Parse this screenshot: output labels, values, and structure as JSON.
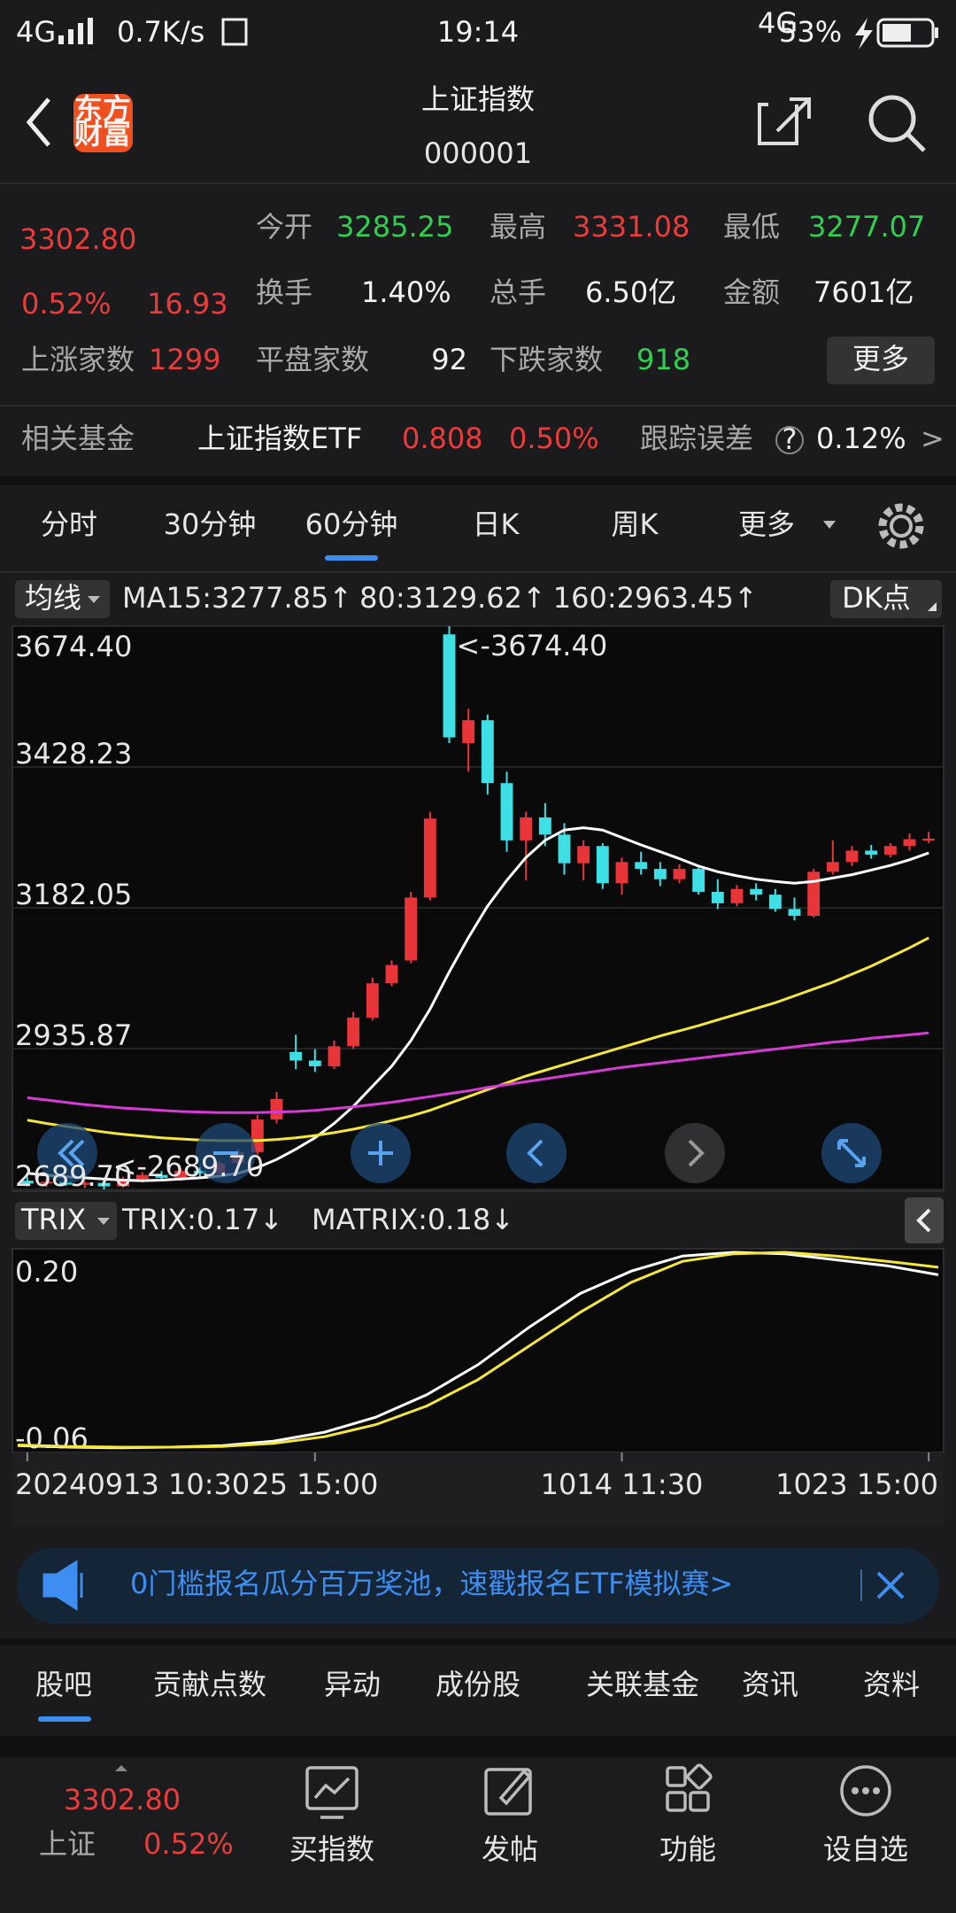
{
  "status_bar": {
    "network": "4G",
    "speed": "0.7K/s",
    "time": "19:14",
    "network_small": "4G",
    "battery": "53%"
  },
  "header": {
    "logo": [
      "东方",
      "财富"
    ],
    "title": "上证指数",
    "code": "000001"
  },
  "quote": {
    "price": "3302.80",
    "change_pct": "0.52%",
    "change": "16.93",
    "stats": [
      [
        {
          "label": "今开",
          "value": "3285.25"
        },
        {
          "label": "最高",
          "value": "3331.08"
        },
        {
          "label": "最低",
          "value": "3277.07"
        }
      ],
      [
        {
          "label": "换手",
          "value": "1.40%"
        },
        {
          "label": "总手",
          "value": "6.50亿"
        },
        {
          "label": "金额",
          "value": "7601亿"
        }
      ]
    ],
    "breadth": [
      {
        "label": "上涨家数",
        "value": "1299"
      },
      {
        "label": "平盘家数",
        "value": "92"
      },
      {
        "label": "下跌家数",
        "value": "918"
      }
    ],
    "more": "更多"
  },
  "fund": {
    "label": "相关基金",
    "name": "上证指数ETF",
    "price": "0.808",
    "pct": "0.50%",
    "tracking_label": "跟踪误差",
    "tracking_icon": "?",
    "tracking": "0.12%",
    "arrow": ">"
  },
  "period_tabs": [
    "分时",
    "30分钟",
    "60分钟",
    "日K",
    "周K",
    "更多"
  ],
  "chart_data": [
    {
      "type": "candlestick",
      "indicator_menu": "均线",
      "dk_button": "DK点",
      "up_color": "#e8353a",
      "down_color": "#3ee0e6",
      "grid": true,
      "ylim": [
        2689.7,
        3674.4
      ],
      "yticks": [
        {
          "value": 3674.4,
          "label": "3674.40"
        },
        {
          "value": 3428.23,
          "label": "3428.23"
        },
        {
          "value": 3182.05,
          "label": "3182.05"
        },
        {
          "value": 2935.87,
          "label": "2935.87"
        },
        {
          "value": 2689.7,
          "label": "2689.70"
        }
      ],
      "xticks": [
        {
          "value": 0,
          "label": "20240913 10:30"
        },
        {
          "value": 15,
          "label": "25 15:00"
        },
        {
          "value": 31,
          "label": "1014 11:30"
        },
        {
          "value": 47,
          "label": "1023 15:00"
        }
      ],
      "annotations": {
        "max": "<-3674.40",
        "min": "<-2689.70"
      },
      "candles": [
        [
          2705,
          2712,
          2695,
          2700
        ],
        [
          2700,
          2708,
          2694,
          2703
        ],
        [
          2703,
          2710,
          2696,
          2698
        ],
        [
          2698,
          2704,
          2692,
          2701
        ],
        [
          2701,
          2706,
          2689.7,
          2695
        ],
        [
          2695,
          2712,
          2693,
          2708
        ],
        [
          2708,
          2720,
          2702,
          2715
        ],
        [
          2715,
          2722,
          2706,
          2710
        ],
        [
          2710,
          2726,
          2705,
          2722
        ],
        [
          2722,
          2730,
          2712,
          2718
        ],
        [
          2718,
          2740,
          2715,
          2736
        ],
        [
          2736,
          2760,
          2730,
          2755
        ],
        [
          2755,
          2820,
          2750,
          2812
        ],
        [
          2812,
          2860,
          2805,
          2848
        ],
        [
          2930,
          2960,
          2900,
          2915
        ],
        [
          2915,
          2935,
          2895,
          2905
        ],
        [
          2905,
          2950,
          2900,
          2940
        ],
        [
          2940,
          3000,
          2935,
          2990
        ],
        [
          2990,
          3060,
          2985,
          3050
        ],
        [
          3050,
          3090,
          3045,
          3082
        ],
        [
          3090,
          3210,
          3085,
          3200
        ],
        [
          3200,
          3350,
          3195,
          3338
        ],
        [
          3660,
          3674.4,
          3470,
          3480
        ],
        [
          3470,
          3530,
          3420,
          3510
        ],
        [
          3510,
          3520,
          3380,
          3400
        ],
        [
          3400,
          3420,
          3280,
          3300
        ],
        [
          3300,
          3350,
          3230,
          3340
        ],
        [
          3340,
          3365,
          3290,
          3310
        ],
        [
          3310,
          3330,
          3240,
          3260
        ],
        [
          3260,
          3300,
          3230,
          3290
        ],
        [
          3290,
          3295,
          3215,
          3225
        ],
        [
          3225,
          3270,
          3205,
          3262
        ],
        [
          3262,
          3280,
          3240,
          3250
        ],
        [
          3250,
          3262,
          3220,
          3232
        ],
        [
          3232,
          3258,
          3225,
          3250
        ],
        [
          3250,
          3252,
          3205,
          3210
        ],
        [
          3210,
          3232,
          3180,
          3190
        ],
        [
          3190,
          3222,
          3185,
          3215
        ],
        [
          3215,
          3225,
          3195,
          3205
        ],
        [
          3205,
          3215,
          3175,
          3180
        ],
        [
          3180,
          3200,
          3160,
          3168
        ],
        [
          3168,
          3250,
          3165,
          3245
        ],
        [
          3245,
          3300,
          3240,
          3262
        ],
        [
          3262,
          3290,
          3255,
          3282
        ],
        [
          3282,
          3292,
          3268,
          3275
        ],
        [
          3275,
          3295,
          3270,
          3290
        ],
        [
          3290,
          3312,
          3282,
          3302
        ],
        [
          3302,
          3315,
          3295,
          3302.8
        ]
      ],
      "series": [
        {
          "name": "MA15:3277.85↑",
          "color": "#ffffff",
          "values": [
            2718,
            2715,
            2712,
            2710,
            2708,
            2706,
            2705,
            2706,
            2708,
            2710,
            2713,
            2718,
            2728,
            2742,
            2760,
            2780,
            2805,
            2835,
            2870,
            2905,
            2950,
            3005,
            3070,
            3130,
            3185,
            3230,
            3270,
            3300,
            3318,
            3322,
            3318,
            3305,
            3292,
            3280,
            3268,
            3255,
            3245,
            3238,
            3232,
            3228,
            3225,
            3228,
            3234,
            3240,
            3248,
            3256,
            3266,
            3277.85
          ]
        },
        {
          "name": "80:3129.62↑",
          "color": "#f5e63c",
          "values": [
            2811,
            2805,
            2800,
            2795,
            2790,
            2786,
            2783,
            2780,
            2778,
            2776,
            2775,
            2775,
            2775,
            2777,
            2780,
            2784,
            2789,
            2795,
            2802,
            2810,
            2818,
            2828,
            2840,
            2852,
            2864,
            2876,
            2888,
            2898,
            2908,
            2918,
            2928,
            2938,
            2948,
            2958,
            2967,
            2976,
            2986,
            2996,
            3006,
            3016,
            3028,
            3040,
            3052,
            3066,
            3080,
            3096,
            3112,
            3129.62
          ]
        },
        {
          "name": "160:2963.45↑",
          "color": "#d63bd6",
          "values": [
            2850,
            2846,
            2842,
            2838,
            2835,
            2832,
            2830,
            2828,
            2826,
            2825,
            2824,
            2824,
            2824,
            2825,
            2826,
            2828,
            2831,
            2834,
            2838,
            2842,
            2847,
            2852,
            2857,
            2862,
            2868,
            2873,
            2878,
            2883,
            2888,
            2893,
            2898,
            2903,
            2907,
            2911,
            2915,
            2919,
            2923,
            2927,
            2931,
            2935,
            2939,
            2943,
            2947,
            2950,
            2954,
            2957,
            2960,
            2963.45
          ]
        }
      ]
    },
    {
      "type": "line",
      "indicator_menu": "TRIX",
      "ylim": [
        -0.06,
        0.2
      ],
      "yticks": [
        {
          "value": 0.2,
          "label": "0.20"
        },
        {
          "value": -0.06,
          "label": "-0.06"
        }
      ],
      "series": [
        {
          "name": "TRIX:0.17↓",
          "color": "#ffffff",
          "values": [
            -0.058,
            -0.06,
            -0.061,
            -0.06,
            -0.058,
            -0.052,
            -0.04,
            -0.02,
            0.01,
            0.05,
            0.1,
            0.145,
            0.175,
            0.195,
            0.2,
            0.198,
            0.19,
            0.182,
            0.17
          ]
        },
        {
          "name": "MATRIX:0.18↓",
          "color": "#f5e63c",
          "values": [
            -0.057,
            -0.059,
            -0.06,
            -0.06,
            -0.059,
            -0.055,
            -0.046,
            -0.03,
            -0.005,
            0.03,
            0.075,
            0.12,
            0.16,
            0.188,
            0.198,
            0.2,
            0.195,
            0.188,
            0.18
          ]
        }
      ]
    }
  ],
  "banner": {
    "text": "0门槛报名瓜分百万奖池，速戳报名ETF模拟赛>"
  },
  "info_tabs": [
    "股吧",
    "贡献点数",
    "异动",
    "成份股",
    "关联基金",
    "资讯",
    "资料"
  ],
  "nav": {
    "index_price": "3302.80",
    "index_name": "上证",
    "index_pct": "0.52%",
    "items": [
      "买指数",
      "发帖",
      "功能",
      "设自选"
    ]
  }
}
